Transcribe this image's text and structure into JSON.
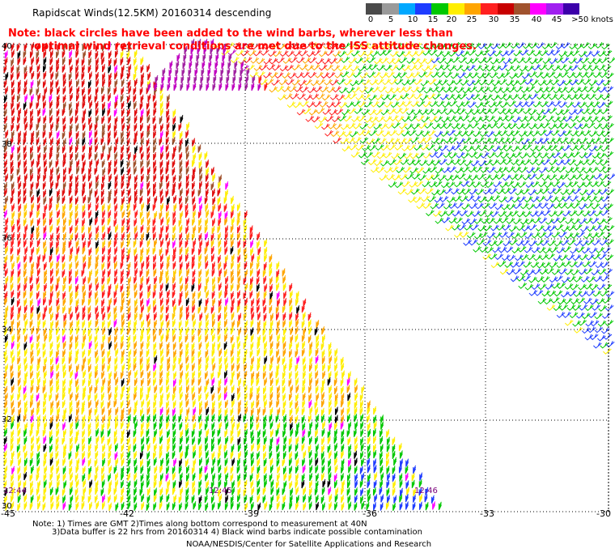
{
  "title": "Rapidscat Winds(12.5KM) 20160314 descending",
  "note": {
    "line1": "Note: black circles have been added to the wind barbs, wherever less than",
    "line2": "optimal wind retrieval conditions are met due to the ISS attitude changes."
  },
  "legend": {
    "labels": [
      "0",
      "5",
      "10",
      "15",
      "20",
      "25",
      "30",
      "35",
      "40",
      "45",
      ">50 knots"
    ],
    "colors": [
      "#4a4a4a",
      "#9a9a9a",
      "#00a8ff",
      "#1e3cff",
      "#00c800",
      "#ffee00",
      "#ffa500",
      "#ff2020",
      "#c80000",
      "#a0522d",
      "#ff00ff",
      "#a020f0",
      "#3c00aa"
    ]
  },
  "axes": {
    "lat_labels": [
      "40",
      "38",
      "36",
      "34",
      "32",
      "30"
    ],
    "lon_labels": [
      "-45",
      "-42",
      "-39",
      "-36",
      "-33",
      "-30"
    ]
  },
  "times": [
    "12:44",
    "12:45",
    "12:46"
  ],
  "footer": {
    "line1": "Note: 1) Times are GMT 2)Times along bottom correspond to measurement at 40N",
    "line2": "3)Data buffer is 22 hrs from 20160314 4) Black wind barbs indicate possible contamination",
    "line3": "NOAA/NESDIS/Center for Satellite Applications and Research"
  },
  "colors": {
    "note_text": "#ff0000",
    "time_label": "#7a007a",
    "grid": "#000000"
  }
}
